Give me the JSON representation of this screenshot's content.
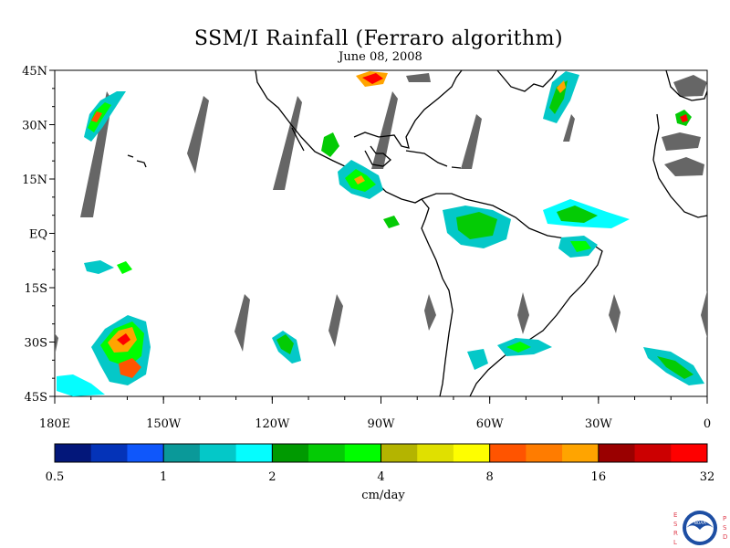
{
  "title": "SSM/I Rainfall (Ferraro algorithm)",
  "subtitle": "June 08, 2008",
  "map": {
    "lat_labels": [
      "45N",
      "30N",
      "15N",
      "EQ",
      "15S",
      "30S",
      "45S"
    ],
    "lon_labels": [
      "180E",
      "150W",
      "120W",
      "90W",
      "60W",
      "30W",
      "0"
    ],
    "lon_range": [
      -180,
      0
    ],
    "lat_range": [
      -45,
      45
    ],
    "no_data_color": "#666666",
    "land_outline_color": "#000000"
  },
  "colorbar": {
    "colors": [
      "#03177a",
      "#0433b8",
      "#0f57fb",
      "#0a9999",
      "#04c8c8",
      "#05fdfe",
      "#009a01",
      "#04cb05",
      "#00fd00",
      "#b4b400",
      "#e0e000",
      "#fefe00",
      "#ff5400",
      "#ff7c00",
      "#ffa400",
      "#9a0000",
      "#cc0001",
      "#fe0000"
    ],
    "tick_labels": [
      "0.5",
      "1",
      "2",
      "4",
      "8",
      "16",
      "32"
    ],
    "unit_label": "cm/day"
  },
  "logo": {
    "left_letters": "ESRL",
    "right_letters": "PSD",
    "seal_text": "NOAA"
  }
}
